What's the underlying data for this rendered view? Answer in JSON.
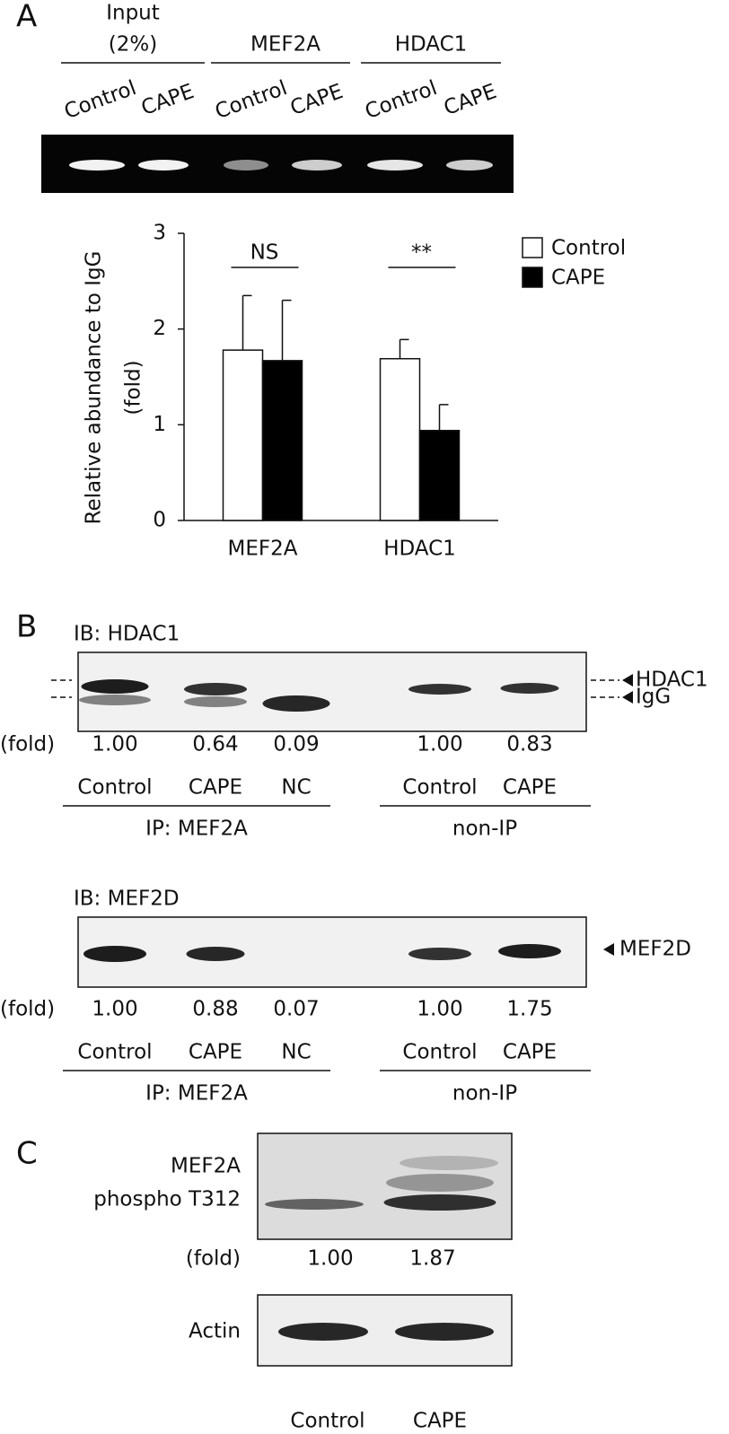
{
  "panel_a": {
    "label": "A",
    "groups": [
      {
        "lines": [
          "Input",
          "(2%)"
        ],
        "lanes": [
          "Control",
          "CAPE"
        ]
      },
      {
        "lines": [
          "MEF2A"
        ],
        "lanes": [
          "Control",
          "CAPE"
        ]
      },
      {
        "lines": [
          "HDAC1"
        ],
        "lanes": [
          "Control",
          "CAPE"
        ]
      }
    ]
  },
  "chart_data": {
    "type": "bar",
    "ylabel": [
      "Relative abundance to IgG",
      "(fold)"
    ],
    "categories": [
      "MEF2A",
      "HDAC1"
    ],
    "series": [
      {
        "name": "Control",
        "color": "#ffffff",
        "values": [
          1.78,
          1.69
        ],
        "errors": [
          0.57,
          0.2
        ]
      },
      {
        "name": "CAPE",
        "color": "#000000",
        "values": [
          1.67,
          0.94
        ],
        "errors": [
          0.63,
          0.27
        ]
      }
    ],
    "annotations": [
      "NS",
      "**"
    ],
    "ylim": [
      0,
      3
    ],
    "yticks": [
      0,
      1,
      2,
      3
    ],
    "legend": "upper right"
  },
  "panel_b": {
    "label": "B",
    "blots": [
      {
        "ib": "IB: HDAC1",
        "fold_label": "(fold)",
        "folds": [
          "1.00",
          "0.64",
          "0.09",
          "1.00",
          "0.83"
        ],
        "lanes": [
          "Control",
          "CAPE",
          "NC",
          "Control",
          "CAPE"
        ],
        "groups": [
          "IP: MEF2A",
          "non-IP"
        ],
        "markers": [
          "HDAC1",
          "IgG"
        ]
      },
      {
        "ib": "IB: MEF2D",
        "fold_label": "(fold)",
        "folds": [
          "1.00",
          "0.88",
          "0.07",
          "1.00",
          "1.75"
        ],
        "lanes": [
          "Control",
          "CAPE",
          "NC",
          "Control",
          "CAPE"
        ],
        "groups": [
          "IP: MEF2A",
          "non-IP"
        ],
        "markers": [
          "MEF2D"
        ]
      }
    ]
  },
  "panel_c": {
    "label": "C",
    "blot_label": [
      "MEF2A",
      "phospho T312"
    ],
    "fold_label": "(fold)",
    "folds": [
      "1.00",
      "1.87"
    ],
    "actin": "Actin",
    "lanes": [
      "Control",
      "CAPE"
    ]
  }
}
